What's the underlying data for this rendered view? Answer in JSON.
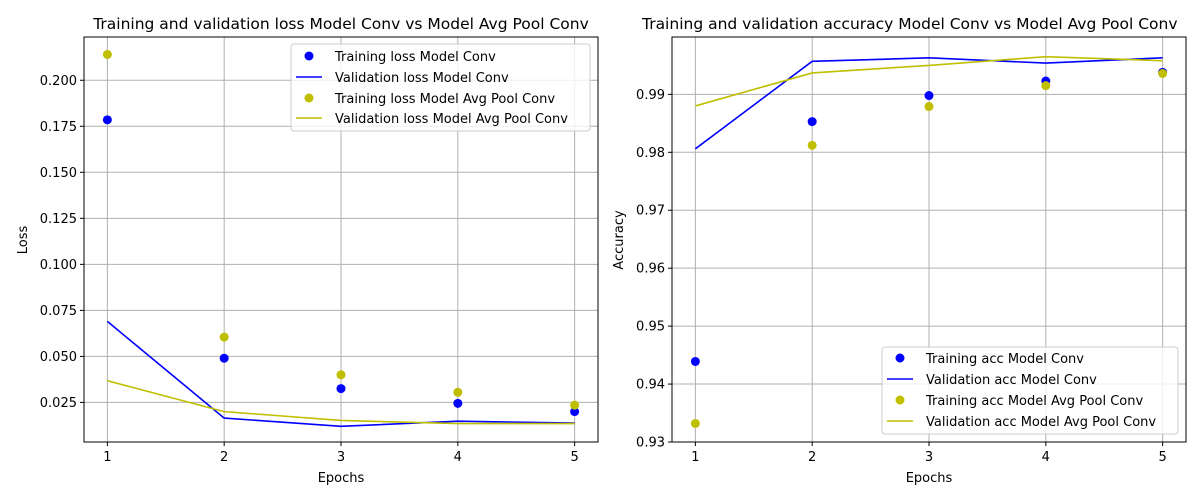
{
  "chart_data": [
    {
      "type": "line",
      "title": "Training and validation loss Model Conv vs Model Avg Pool Conv",
      "xlabel": "Epochs",
      "ylabel": "Loss",
      "x": [
        1,
        2,
        3,
        4,
        5
      ],
      "xticks": [
        "1",
        "2",
        "3",
        "4",
        "5"
      ],
      "yticks": [
        "0.025",
        "0.050",
        "0.075",
        "0.100",
        "0.125",
        "0.150",
        "0.175",
        "0.200"
      ],
      "xlim": [
        0.8,
        5.2
      ],
      "ylim": [
        0.0035,
        0.2235
      ],
      "grid": true,
      "legend_position": "upper right",
      "series": [
        {
          "name": "Training loss Model Conv",
          "style": "points",
          "color": "#0000ff",
          "values": [
            0.1785,
            0.049,
            0.0325,
            0.0245,
            0.02
          ]
        },
        {
          "name": "Validation loss Model Conv",
          "style": "line",
          "color": "#0000ff",
          "values": [
            0.069,
            0.0165,
            0.012,
            0.0148,
            0.0138
          ]
        },
        {
          "name": "Training loss Model Avg Pool Conv",
          "style": "points",
          "color": "#bfbf00",
          "values": [
            0.214,
            0.0605,
            0.04,
            0.0305,
            0.0235
          ]
        },
        {
          "name": "Validation loss Model Avg Pool Conv",
          "style": "line",
          "color": "#bfbf00",
          "values": [
            0.0368,
            0.02,
            0.0152,
            0.0135,
            0.0135
          ]
        }
      ]
    },
    {
      "type": "line",
      "title": "Training and validation accuracy Model Conv vs Model Avg Pool Conv",
      "xlabel": "Epochs",
      "ylabel": "Accuracy",
      "x": [
        1,
        2,
        3,
        4,
        5
      ],
      "xticks": [
        "1",
        "2",
        "3",
        "4",
        "5"
      ],
      "yticks": [
        "0.93",
        "0.94",
        "0.95",
        "0.96",
        "0.97",
        "0.98",
        "0.99"
      ],
      "xlim": [
        0.8,
        5.2
      ],
      "ylim": [
        0.93,
        0.9999
      ],
      "grid": true,
      "legend_position": "lower right",
      "series": [
        {
          "name": "Training acc Model Conv",
          "style": "points",
          "color": "#0000ff",
          "values": [
            0.9439,
            0.9853,
            0.9898,
            0.9923,
            0.9938
          ]
        },
        {
          "name": "Validation acc Model Conv",
          "style": "line",
          "color": "#0000ff",
          "values": [
            0.9806,
            0.9957,
            0.9963,
            0.9954,
            0.9963
          ]
        },
        {
          "name": "Training acc Model Avg Pool Conv",
          "style": "points",
          "color": "#bfbf00",
          "values": [
            0.9332,
            0.9812,
            0.9879,
            0.9915,
            0.9936
          ]
        },
        {
          "name": "Validation acc Model Avg Pool Conv",
          "style": "line",
          "color": "#bfbf00",
          "values": [
            0.988,
            0.9937,
            0.995,
            0.9965,
            0.9958
          ]
        }
      ]
    }
  ]
}
